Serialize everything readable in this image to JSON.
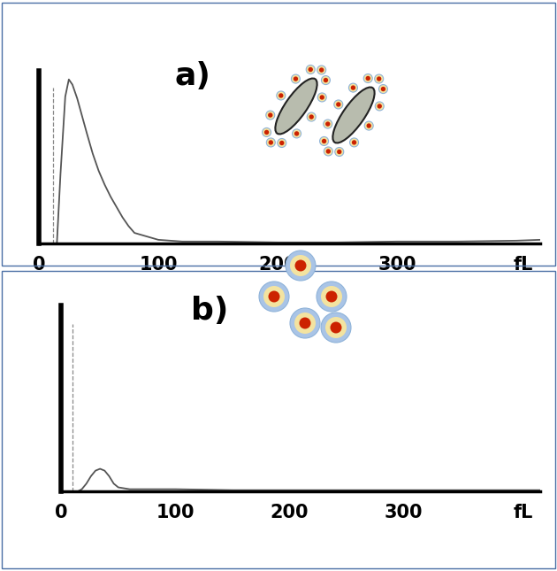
{
  "chart_data": [
    {
      "type": "line",
      "title": "a)",
      "xlabel": "fL",
      "color": "#555555",
      "x": [
        15,
        18,
        22,
        25,
        28,
        32,
        36,
        40,
        45,
        50,
        55,
        60,
        65,
        70,
        75,
        80,
        90,
        100,
        120,
        150,
        200,
        250,
        300,
        350,
        400,
        420
      ],
      "values": [
        0,
        40,
        85,
        95,
        92,
        84,
        74,
        64,
        52,
        42,
        34,
        27,
        21,
        15,
        10,
        6,
        4,
        2,
        1,
        1,
        0.5,
        0.5,
        1,
        1,
        1.5,
        2
      ],
      "threshold": 12,
      "xlim": [
        0,
        420
      ],
      "xticks": [
        0,
        100,
        200,
        300
      ],
      "ylim": [
        0,
        100
      ],
      "grid": false,
      "tick_labels": "x"
    },
    {
      "type": "line",
      "title": "b)",
      "xlabel": "fL",
      "color": "#555555",
      "x": [
        15,
        18,
        22,
        26,
        30,
        34,
        38,
        42,
        46,
        50,
        60,
        80,
        100,
        150,
        200,
        250,
        300,
        350,
        400,
        420
      ],
      "values": [
        0,
        1,
        4,
        8,
        11,
        12,
        11,
        8,
        4,
        2,
        1,
        1,
        1,
        0.5,
        0.5,
        0.5,
        0.5,
        0.5,
        0.5,
        0.5
      ],
      "threshold": 10,
      "xlim": [
        0,
        420
      ],
      "xticks": [
        0,
        100,
        200,
        300
      ],
      "ylim": [
        0,
        100
      ],
      "grid": false,
      "tick_labels": "x"
    }
  ]
}
